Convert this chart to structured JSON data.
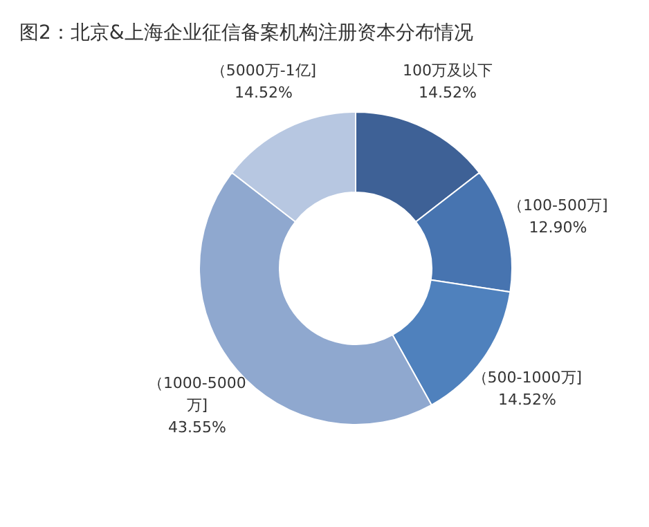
{
  "chart_data": {
    "type": "donut",
    "title": "图2：北京&上海企业征信备案机构注册资本分布情况",
    "categories": [
      "100万及以下",
      "（100-500万]",
      "（500-1000万]",
      "（1000-5000万]",
      "（5000万-1亿]"
    ],
    "values": [
      14.52,
      12.9,
      14.52,
      43.55,
      14.52
    ],
    "value_labels": [
      "14.52%",
      "12.90%",
      "14.52%",
      "43.55%",
      "14.52%"
    ],
    "colors": [
      "#3e6196",
      "#4774b0",
      "#4f81bd",
      "#8fa8cf",
      "#b7c7e1"
    ]
  }
}
